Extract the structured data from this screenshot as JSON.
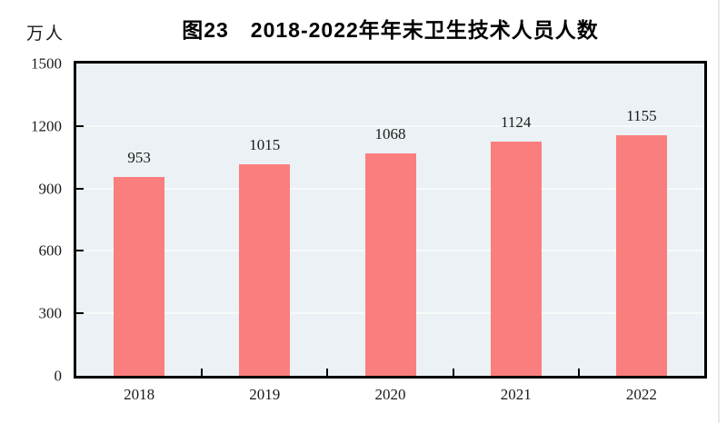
{
  "figure": {
    "title": "图23　2018-2022年年末卫生技术人员人数",
    "unit_label": "万人"
  },
  "chart_data": {
    "type": "bar",
    "title": "图23　2018-2022年年末卫生技术人员人数",
    "xlabel": "",
    "ylabel": "万人",
    "categories": [
      "2018",
      "2019",
      "2020",
      "2021",
      "2022"
    ],
    "values": [
      953,
      1015,
      1068,
      1124,
      1155
    ],
    "value_labels": [
      "953",
      "1015",
      "1068",
      "1124",
      "1155"
    ],
    "ylim": [
      0,
      1500
    ],
    "yticks": [
      0,
      300,
      600,
      900,
      1200,
      1500
    ],
    "grid": "horizontal",
    "legend_position": "none",
    "colors": {
      "bar": "#fb7e7e",
      "plot_background": "#ebf1f4",
      "gridline": "#f7fafb",
      "axis": "#000000",
      "text": "#1a1a1a"
    }
  }
}
